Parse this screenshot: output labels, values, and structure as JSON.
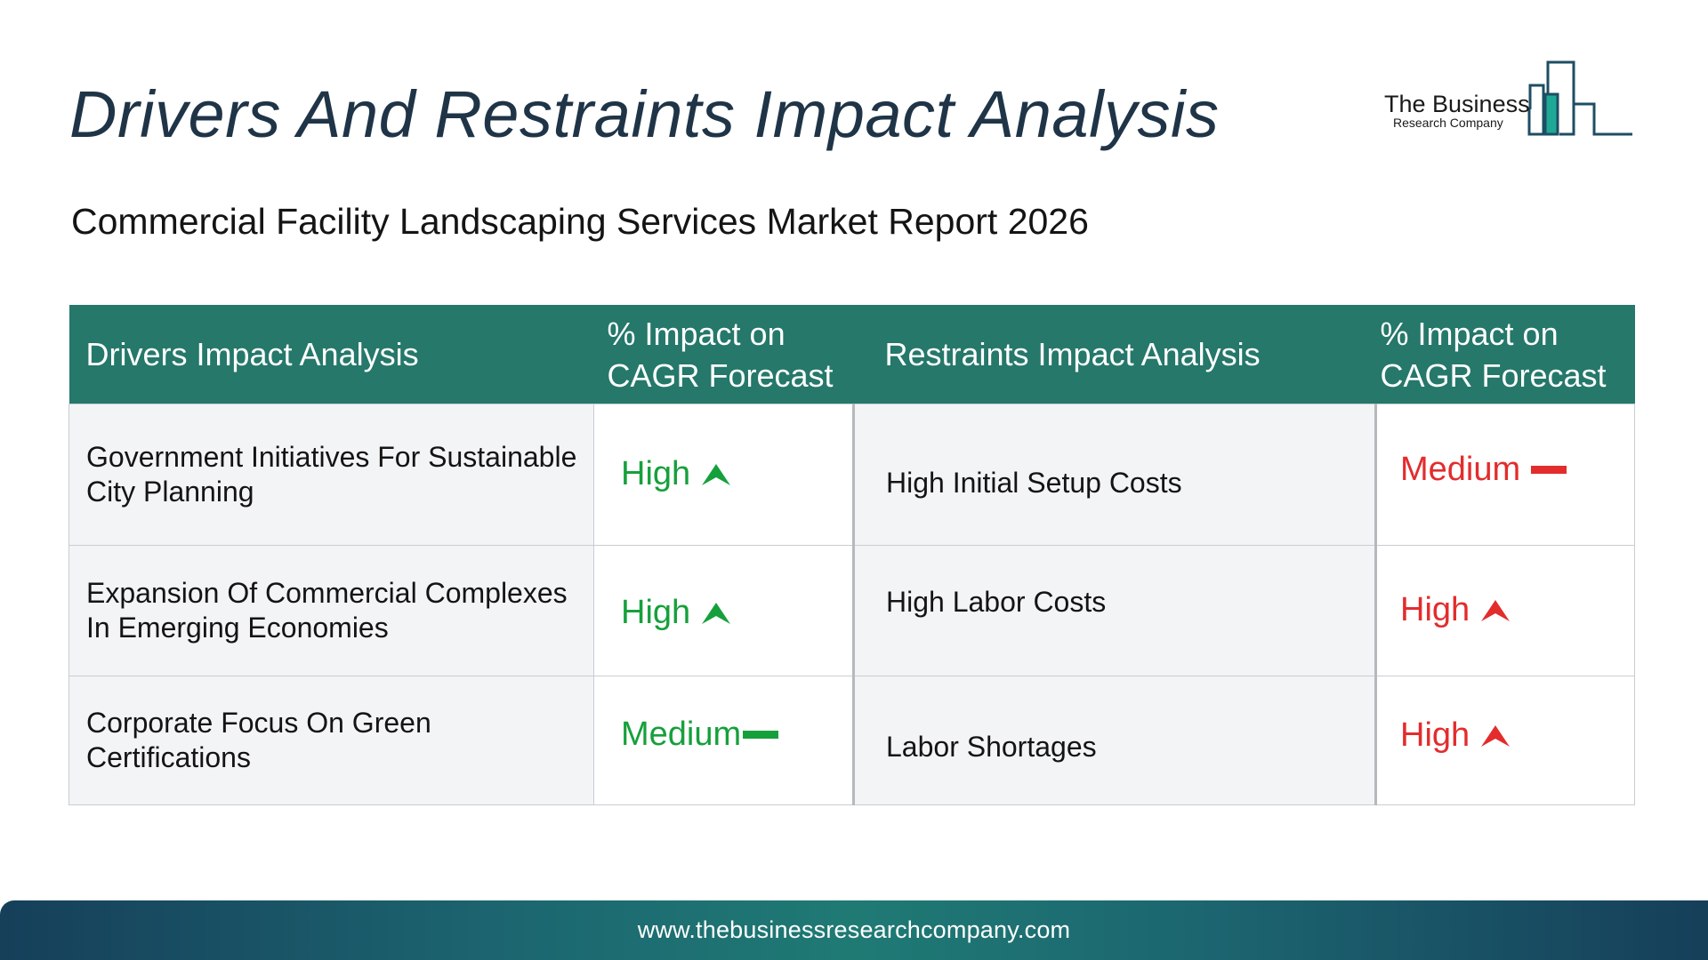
{
  "title": "Drivers And Restraints Impact Analysis",
  "subtitle": "Commercial Facility Landscaping Services Market Report 2026",
  "logo": {
    "line1": "The Business",
    "line2": "Research Company",
    "color": "#1e7d6f"
  },
  "table": {
    "headers": [
      "Drivers Impact Analysis",
      "% Impact on CAGR Forecast",
      "Restraints Impact Analysis",
      "% Impact on CAGR Forecast"
    ],
    "header_color": "#25786a",
    "rows": [
      {
        "driver": "Government Initiatives For Sustainable City Planning",
        "driver_impact": "High",
        "driver_icon": "up-arrow-icon",
        "restraint": "High Initial Setup Costs",
        "restraint_impact": "Medium",
        "restraint_icon": "dash-icon"
      },
      {
        "driver": "Expansion Of Commercial Complexes In Emerging Economies",
        "driver_impact": "High",
        "driver_icon": "up-arrow-icon",
        "restraint": "High Labor Costs",
        "restraint_impact": "High",
        "restraint_icon": "up-arrow-icon"
      },
      {
        "driver": "Corporate Focus On Green Certifications",
        "driver_impact": "Medium",
        "driver_icon": "dash-icon",
        "restraint": "Labor Shortages",
        "restraint_impact": "High",
        "restraint_icon": "up-arrow-icon"
      }
    ],
    "driver_color": "#16a03b",
    "restraint_color": "#e32c2c"
  },
  "footer": {
    "url": "www.thebusinessresearchcompany.com"
  }
}
